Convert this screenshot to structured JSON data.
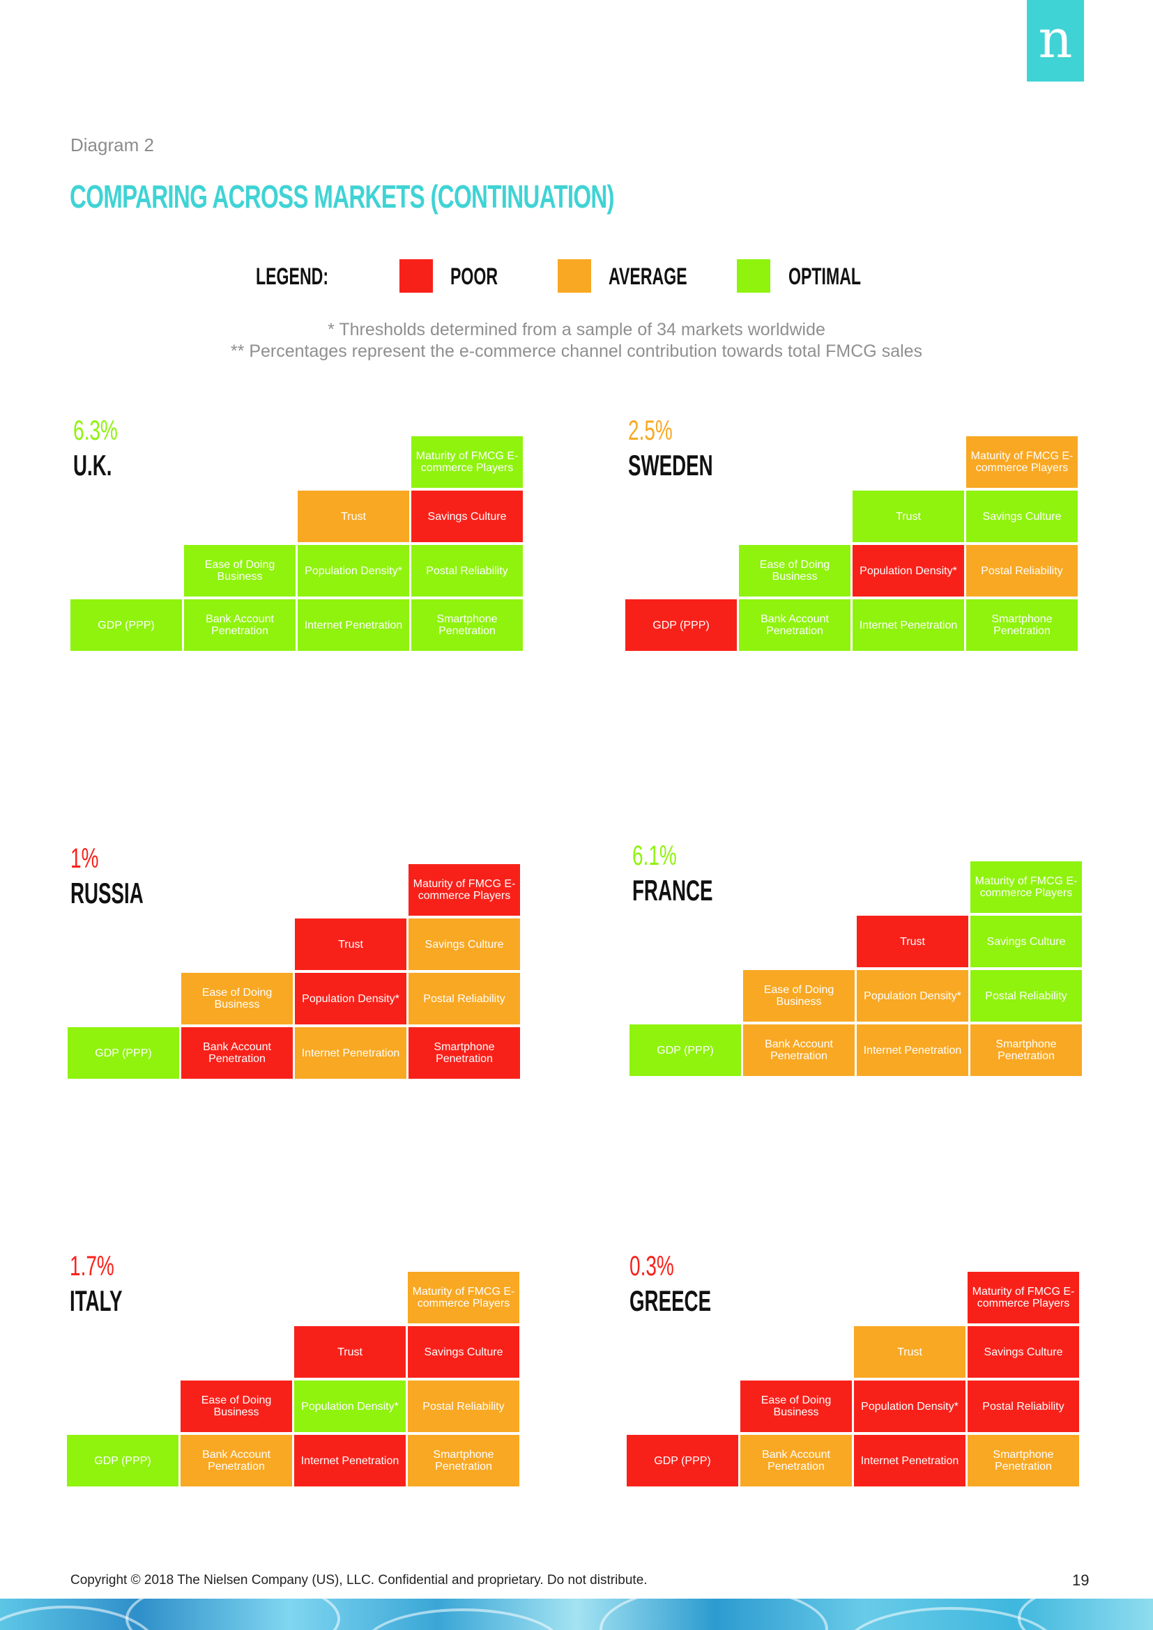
{
  "colors": {
    "poor": "#f8211a",
    "average": "#f9a823",
    "optimal": "#8ff30e",
    "accent": "#3fd3d5"
  },
  "logo": "n",
  "diagram_label": "Diagram 2",
  "title": "COMPARING ACROSS MARKETS (CONTINUATION)",
  "legend": {
    "heading": "LEGEND:",
    "poor": "POOR",
    "average": "AVERAGE",
    "optimal": "OPTIMAL"
  },
  "notes": [
    "* Thresholds determined from a sample of 34 markets worldwide",
    "** Percentages represent the e-commerce channel contribution towards total FMCG sales"
  ],
  "labels": {
    "maturity": "Maturity of FMCG E-commerce Players",
    "trust": "Trust",
    "savings": "Savings Culture",
    "ease": "Ease of Doing Business",
    "popdensity": "Population Density*",
    "postal": "Postal Reliability",
    "gdp": "GDP (PPP)",
    "bank": "Bank Account Penetration",
    "internet": "Internet Penetration",
    "smartphone": "Smartphone Penetration"
  },
  "markets": [
    {
      "name": "U.K.",
      "pct": "6.3%",
      "pct_rating": "optimal",
      "ratings": {
        "maturity": "optimal",
        "trust": "average",
        "savings": "poor",
        "ease": "optimal",
        "popdensity": "optimal",
        "postal": "optimal",
        "gdp": "optimal",
        "bank": "optimal",
        "internet": "optimal",
        "smartphone": "optimal"
      }
    },
    {
      "name": "SWEDEN",
      "pct": "2.5%",
      "pct_rating": "average",
      "ratings": {
        "maturity": "average",
        "trust": "optimal",
        "savings": "optimal",
        "ease": "optimal",
        "popdensity": "poor",
        "postal": "average",
        "gdp": "poor",
        "bank": "optimal",
        "internet": "optimal",
        "smartphone": "optimal"
      }
    },
    {
      "name": "RUSSIA",
      "pct": "1%",
      "pct_rating": "poor",
      "ratings": {
        "maturity": "poor",
        "trust": "poor",
        "savings": "average",
        "ease": "average",
        "popdensity": "poor",
        "postal": "average",
        "gdp": "optimal",
        "bank": "poor",
        "internet": "average",
        "smartphone": "poor"
      }
    },
    {
      "name": "FRANCE",
      "pct": "6.1%",
      "pct_rating": "optimal",
      "ratings": {
        "maturity": "optimal",
        "trust": "poor",
        "savings": "optimal",
        "ease": "average",
        "popdensity": "average",
        "postal": "optimal",
        "gdp": "optimal",
        "bank": "average",
        "internet": "average",
        "smartphone": "average"
      }
    },
    {
      "name": "ITALY",
      "pct": "1.7%",
      "pct_rating": "poor",
      "ratings": {
        "maturity": "average",
        "trust": "poor",
        "savings": "poor",
        "ease": "poor",
        "popdensity": "optimal",
        "postal": "average",
        "gdp": "optimal",
        "bank": "average",
        "internet": "poor",
        "smartphone": "average"
      }
    },
    {
      "name": "GREECE",
      "pct": "0.3%",
      "pct_rating": "poor",
      "ratings": {
        "maturity": "poor",
        "trust": "average",
        "savings": "poor",
        "ease": "poor",
        "popdensity": "poor",
        "postal": "poor",
        "gdp": "poor",
        "bank": "average",
        "internet": "poor",
        "smartphone": "average"
      }
    }
  ],
  "footer": "Copyright © 2018 The Nielsen Company (US), LLC. Confidential and proprietary. Do not distribute.",
  "page_number": "19"
}
